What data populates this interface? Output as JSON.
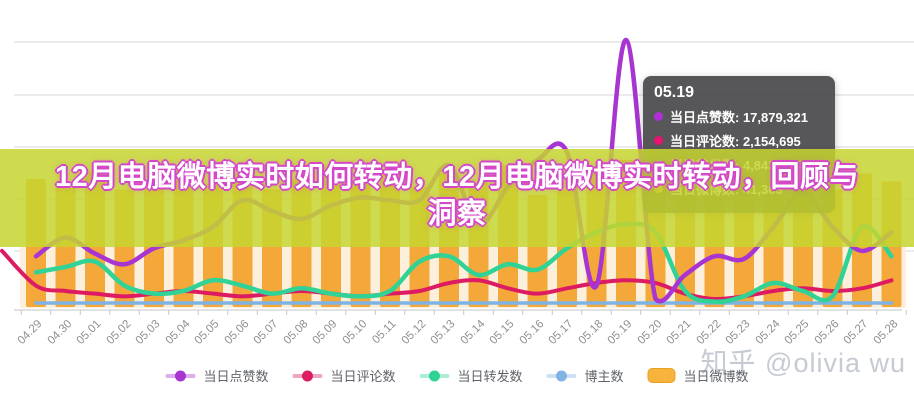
{
  "title": {
    "text": "12月电脑微博实时如何转动，12月电脑微博实时转动，回顾与洞察"
  },
  "tooltip": {
    "date": "05.19",
    "rows": [
      {
        "label": "当日点赞数",
        "value": "17,879,321",
        "color": "#b02fd6"
      },
      {
        "label": "当日评论数",
        "value": "2,154,695",
        "color": "#e8136e"
      },
      {
        "label": "当日转发数",
        "value": "4,843,014",
        "color": "#2bd9a8"
      },
      {
        "label": "当日微博数",
        "value": "41,363",
        "color": "#f0bc3f"
      }
    ]
  },
  "legend": {
    "items": [
      {
        "label": "当日点赞数",
        "color": "#a835d2",
        "marker": "line"
      },
      {
        "label": "当日评论数",
        "color": "#dc1b63",
        "marker": "line"
      },
      {
        "label": "当日转发数",
        "color": "#31d296",
        "marker": "line"
      },
      {
        "label": "博主数",
        "color": "#7fb3e3",
        "marker": "line"
      },
      {
        "label": "当日微博数",
        "color": "#f7b33c",
        "marker": "bar"
      }
    ]
  },
  "watermark": {
    "text": "知乎 @olivia wu"
  },
  "chart_data": {
    "type": "mixed-bar-line",
    "categories": [
      "04.29",
      "04.30",
      "05.01",
      "05.02",
      "05.03",
      "05.04",
      "05.05",
      "05.06",
      "05.07",
      "05.08",
      "05.09",
      "05.10",
      "05.11",
      "05.12",
      "05.13",
      "05.14",
      "05.15",
      "05.16",
      "05.17",
      "05.18",
      "05.19",
      "05.20",
      "05.21",
      "05.22",
      "05.23",
      "05.24",
      "05.25",
      "05.26",
      "05.27",
      "05.28"
    ],
    "y_axis": {
      "visible": false,
      "note": "no y-axis labels shown; series values are relative estimates on a 0-100 scale read from pixel positions"
    },
    "grid": {
      "horizontal_lines": true,
      "legend_position": "bottom"
    },
    "series": [
      {
        "name": "当日点赞数",
        "type": "line",
        "color": "#a835d2",
        "values": [
          19,
          26,
          20,
          16,
          22,
          25,
          30,
          40,
          36,
          33,
          38,
          41,
          40,
          40,
          53,
          31,
          45,
          55,
          58,
          8,
          100,
          3,
          12,
          19,
          18,
          30,
          43,
          30,
          21,
          28
        ]
      },
      {
        "name": "当日评论数",
        "type": "line",
        "color": "#dc1b63",
        "lead_in_value": 21,
        "values": [
          8,
          6,
          5,
          4,
          5,
          6,
          5,
          4,
          5,
          6,
          5,
          4,
          5,
          6,
          9,
          10,
          7,
          5,
          7,
          9,
          10,
          9,
          5,
          3,
          4,
          6,
          7,
          6,
          7,
          10
        ]
      },
      {
        "name": "当日转发数",
        "type": "line",
        "color": "#31d296",
        "values": [
          13,
          15,
          17,
          8,
          5,
          6,
          10,
          8,
          5,
          7,
          5,
          4,
          6,
          17,
          19,
          12,
          16,
          14,
          22,
          28,
          31,
          28,
          6,
          2,
          4,
          9,
          6,
          4,
          30,
          19
        ]
      },
      {
        "name": "博主数",
        "type": "line",
        "color": "#7fb3e3",
        "values": [
          1.5,
          1.5,
          1.5,
          1.5,
          1.5,
          1.5,
          1.5,
          1.5,
          1.5,
          1.5,
          1.5,
          1.5,
          1.5,
          1.5,
          1.5,
          1.5,
          1.5,
          1.5,
          1.5,
          1.5,
          1.5,
          1.5,
          1.5,
          1.5,
          1.5,
          1.5,
          1.5,
          1.5,
          1.5,
          1.5
        ]
      },
      {
        "name": "当日微博数",
        "type": "bar",
        "color": "#f4a83a",
        "values": [
          48,
          45,
          51,
          44,
          47,
          52,
          46,
          50,
          44,
          48,
          53,
          46,
          51,
          45,
          50,
          47,
          53,
          42,
          44,
          51,
          55,
          47,
          45,
          52,
          49,
          46,
          51,
          44,
          50,
          47
        ]
      }
    ],
    "highlighted_point": {
      "date": "05.19",
      "当日点赞数": "17,879,321",
      "当日评论数": "2,154,695",
      "当日转发数": "4,843,014",
      "当日微博数": "41,363"
    }
  }
}
